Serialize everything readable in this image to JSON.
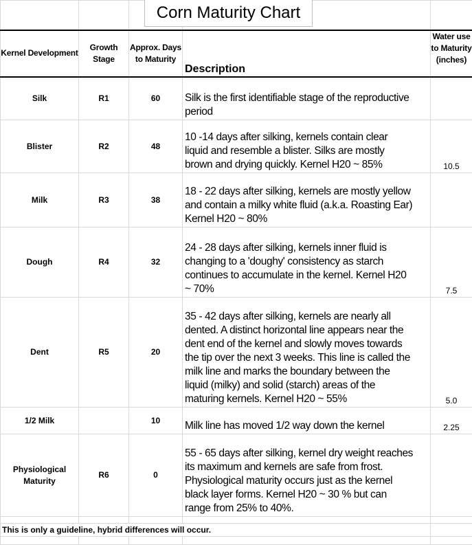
{
  "title": "Corn Maturity Chart",
  "headers": {
    "kernel": "Kernel Development",
    "stage": "Growth Stage",
    "days": "Approx. Days to Maturity",
    "description": "Description",
    "water": "Water use to Maturity (inches)"
  },
  "rows": [
    {
      "kernel": "Silk",
      "stage": "R1",
      "days": "60",
      "description": "Silk is the first identifiable stage of the reproductive\nperiod",
      "water": ""
    },
    {
      "kernel": "Blister",
      "stage": "R2",
      "days": "48",
      "description": "10 -14 days after silking, kernels contain clear\nliquid and resemble a blister.  Silks are mostly\nbrown and drying quickly.  Kernel H20 ~ 85%",
      "water": "10.5"
    },
    {
      "kernel": "Milk",
      "stage": "R3",
      "days": "38",
      "description": "18 - 22 days after silking, kernels are mostly yellow\nand contain a milky white fluid (a.k.a. Roasting Ear)\nKernel H20 ~ 80%",
      "water": ""
    },
    {
      "kernel": "Dough",
      "stage": "R4",
      "days": "32",
      "description": "24 - 28 days after silking, kernels inner fluid is\nchanging to a 'doughy' consistency as starch\ncontinues to accumulate in the kernel.  Kernel H20\n~ 70%",
      "water": "7.5"
    },
    {
      "kernel": "Dent",
      "stage": "R5",
      "days": "20",
      "description": "35 - 42 days after silking, kernels are nearly all\ndented.  A distinct horizontal line appears near the\ndent end of the kernel and slowly moves towards\nthe tip over the next 3 weeks.  This line is called the\nmilk line and marks the boundary between the\nliquid (milky) and solid (starch) areas of the\nmaturing kernels.  Kernel H20 ~ 55%",
      "water": "5.0"
    },
    {
      "kernel": "1/2 Milk",
      "stage": "",
      "days": "10",
      "description": "Milk line has moved 1/2 way down the kernel",
      "water": "2.25"
    },
    {
      "kernel": "Physiological Maturity",
      "stage": "R6",
      "days": "0",
      "description": "55 - 65 days after silking, kernel dry weight reaches\nits maximum and kernels are safe from frost.\nPhysiological maturity occurs just as the kernel\nblack layer forms.  Kernel H20 ~ 30 % but can\nrange from 25% to 40%.",
      "water": ""
    }
  ],
  "footnote": "This is only a guideline, hybrid differences will occur."
}
